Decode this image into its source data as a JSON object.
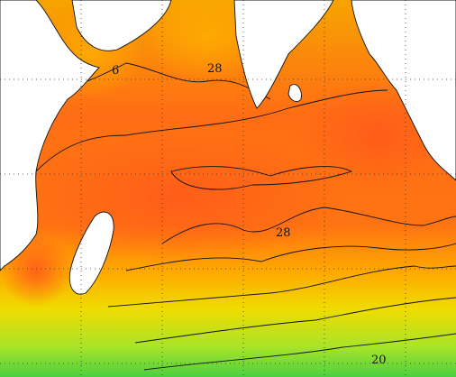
{
  "contour_labels": [
    "6",
    "28",
    "28",
    "20"
  ]
}
